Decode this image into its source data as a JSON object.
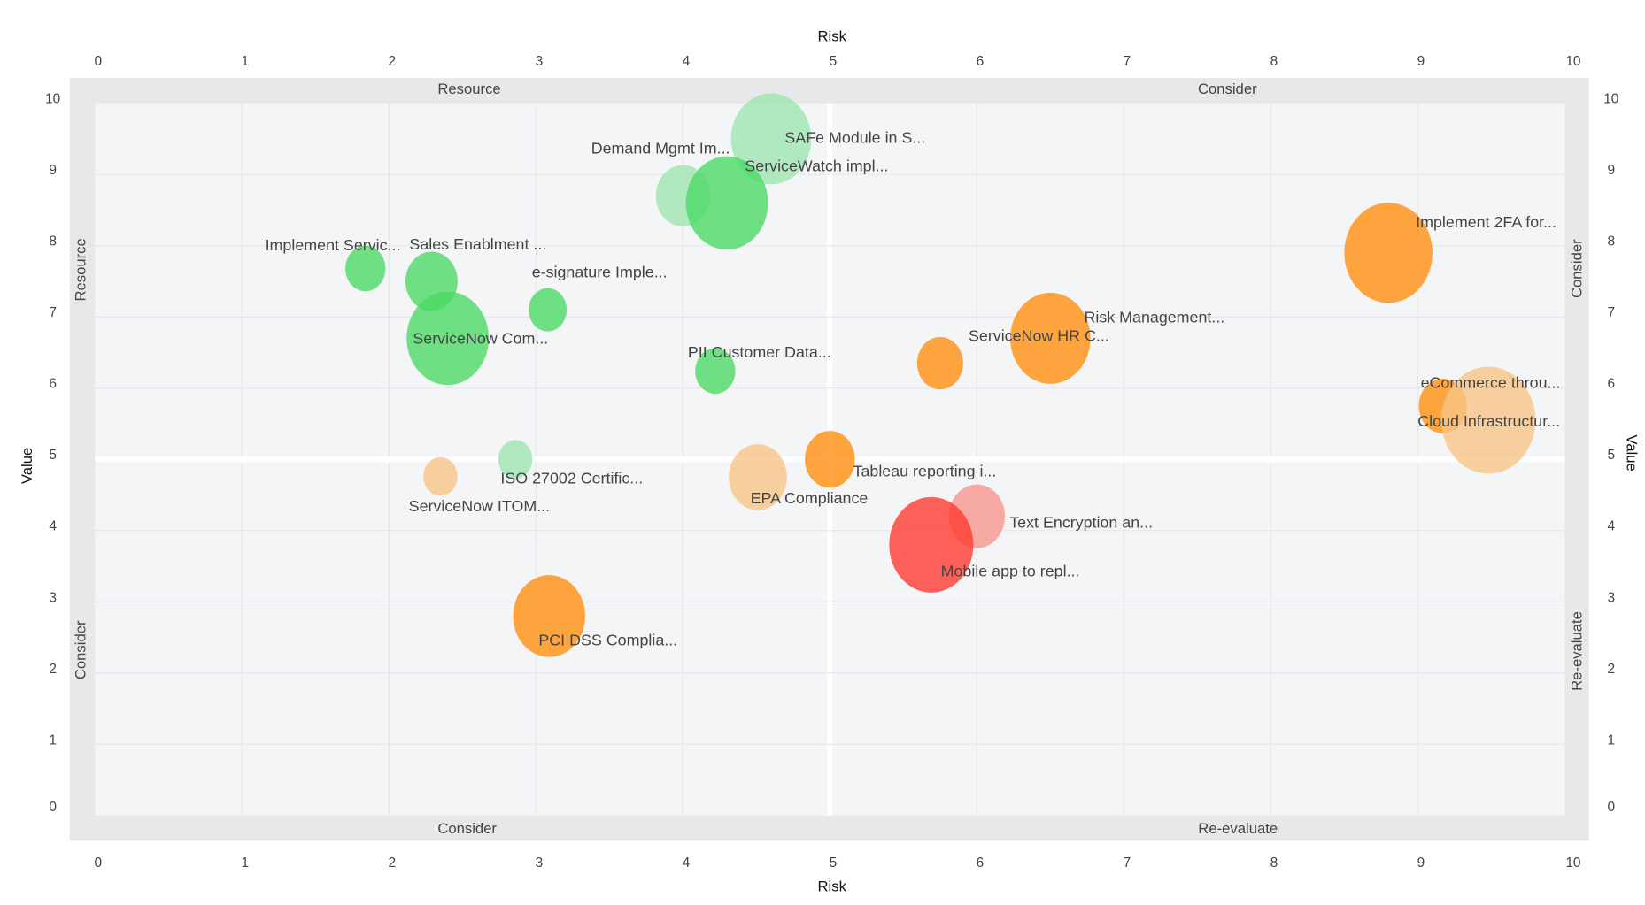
{
  "chart_data": {
    "type": "bubble",
    "xlabel": "Risk",
    "ylabel": "Value",
    "xlim": [
      0,
      10
    ],
    "ylim": [
      0,
      10
    ],
    "x_ticks": [
      "0",
      "1",
      "2",
      "3",
      "4",
      "5",
      "6",
      "7",
      "8",
      "9",
      "10"
    ],
    "y_ticks": [
      "0",
      "1",
      "2",
      "3",
      "4",
      "5",
      "6",
      "7",
      "8",
      "9",
      "10"
    ],
    "grid": true,
    "quadrant_labels": {
      "top_left": "Resource",
      "top_right": "Consider",
      "bottom_left": "Consider",
      "bottom_right": "Re-evaluate",
      "left_upper": "Resource",
      "left_lower": "Consider",
      "right_upper": "Consider",
      "right_lower": "Re-evaluate"
    },
    "colors": {
      "green": "#4cd964",
      "light_green": "#9fe5b0",
      "orange": "#ff9010",
      "light_orange": "#f8c688",
      "red": "#ff3b30",
      "light_red": "#f7968d"
    },
    "points": [
      {
        "label": "SAFe Module in S...",
        "x": 4.6,
        "y": 9.5,
        "size": 40,
        "color": "light_green"
      },
      {
        "label": "Demand Mgmt Im...",
        "x": 4.0,
        "y": 8.7,
        "size": 27,
        "color": "light_green"
      },
      {
        "label": "ServiceWatch impl...",
        "x": 4.3,
        "y": 8.6,
        "size": 41,
        "color": "green"
      },
      {
        "label": "Implement Servic...",
        "x": 1.84,
        "y": 7.68,
        "size": 20,
        "color": "green"
      },
      {
        "label": "Sales Enablment ...",
        "x": 2.29,
        "y": 7.5,
        "size": 26,
        "color": "green"
      },
      {
        "label": "e-signature Imple...",
        "x": 3.08,
        "y": 7.1,
        "size": 19,
        "color": "green"
      },
      {
        "label": "ServiceNow Com...",
        "x": 2.4,
        "y": 6.7,
        "size": 41,
        "color": "green"
      },
      {
        "label": "PII Customer Data...",
        "x": 4.22,
        "y": 6.24,
        "size": 20,
        "color": "green"
      },
      {
        "label": "Implement 2FA for...",
        "x": 8.8,
        "y": 7.9,
        "size": 44,
        "color": "orange"
      },
      {
        "label": "Risk Management...",
        "x": 6.5,
        "y": 6.7,
        "size": 40,
        "color": "orange"
      },
      {
        "label": "ServiceNow HR C...",
        "x": 5.75,
        "y": 6.35,
        "size": 23,
        "color": "orange"
      },
      {
        "label": "eCommerce throu...",
        "x": 9.17,
        "y": 5.75,
        "size": 24,
        "color": "orange"
      },
      {
        "label": "Cloud Infrastructur...",
        "x": 9.48,
        "y": 5.55,
        "size": 47,
        "color": "light_orange"
      },
      {
        "label": "Tableau reporting i...",
        "x": 5.0,
        "y": 5.0,
        "size": 25,
        "color": "orange"
      },
      {
        "label": "EPA Compliance",
        "x": 4.51,
        "y": 4.75,
        "size": 29,
        "color": "light_orange"
      },
      {
        "label": "ISO 27002 Certific...",
        "x": 2.86,
        "y": 5.0,
        "size": 17,
        "color": "light_green"
      },
      {
        "label": "ServiceNow ITOM...",
        "x": 2.35,
        "y": 4.76,
        "size": 17,
        "color": "light_orange"
      },
      {
        "label": "Text Encryption an...",
        "x": 6.0,
        "y": 4.2,
        "size": 28,
        "color": "light_red"
      },
      {
        "label": "Mobile app to repl...",
        "x": 5.69,
        "y": 3.8,
        "size": 42,
        "color": "red"
      },
      {
        "label": "PCI DSS Complia...",
        "x": 3.09,
        "y": 2.8,
        "size": 36,
        "color": "orange"
      }
    ]
  }
}
